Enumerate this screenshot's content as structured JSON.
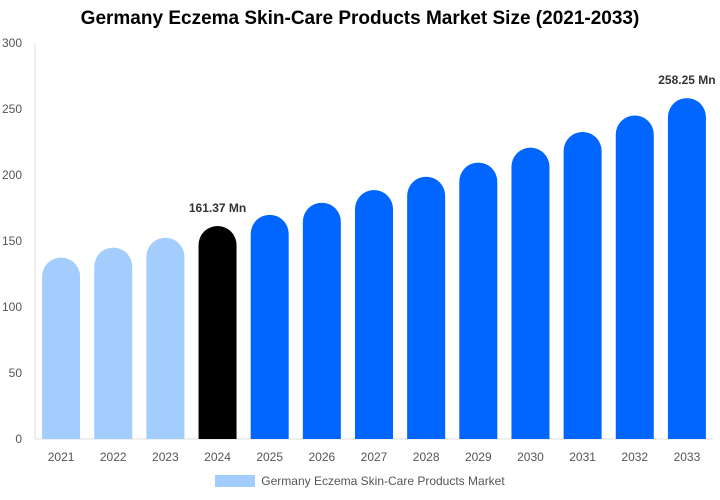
{
  "chart_data": {
    "type": "bar",
    "title": "Germany Eczema Skin-Care Products Market Size (2021-2033)",
    "categories": [
      "2021",
      "2022",
      "2023",
      "2024",
      "2025",
      "2026",
      "2027",
      "2028",
      "2029",
      "2030",
      "2031",
      "2032",
      "2033"
    ],
    "series": [
      {
        "name": "Germany Eczema Skin-Care Products Market",
        "values": [
          137.5,
          145.0,
          152.5,
          161.37,
          169.8,
          179.0,
          188.6,
          198.7,
          209.4,
          220.7,
          232.6,
          245.1,
          258.25
        ]
      }
    ],
    "data_labels": {
      "2024": "161.37 Mn",
      "2033": "258.25 Mn"
    },
    "ylim": [
      0,
      300
    ],
    "yticks": [
      0,
      50,
      100,
      150,
      200,
      250,
      300
    ],
    "grid": false,
    "legend": "bottom",
    "colors": {
      "historical": "#a3cdfd",
      "current": "#000000",
      "forecast": "#0066ff"
    },
    "color_groups": [
      "historical",
      "historical",
      "historical",
      "current",
      "forecast",
      "forecast",
      "forecast",
      "forecast",
      "forecast",
      "forecast",
      "forecast",
      "forecast",
      "forecast"
    ]
  }
}
